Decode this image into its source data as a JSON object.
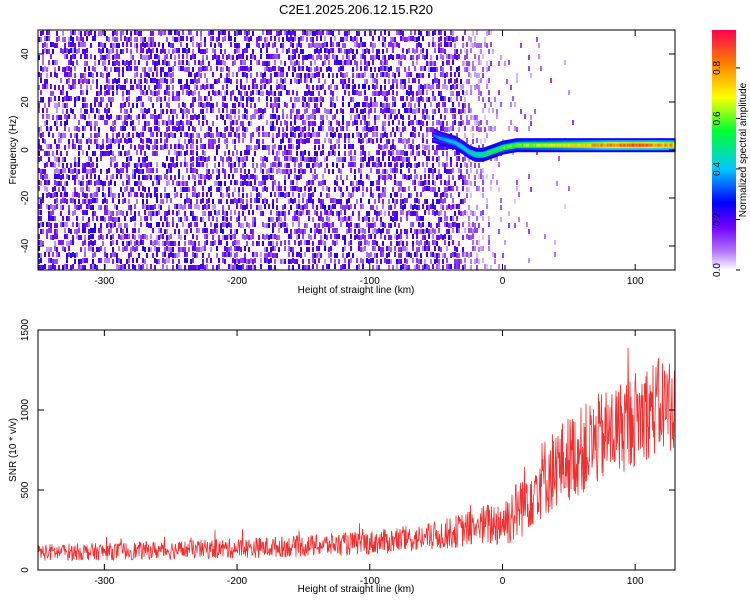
{
  "figure": {
    "title": "C2E1.2025.206.12.15.R20"
  },
  "chart_data": [
    {
      "type": "heatmap",
      "title": "C2E1.2025.206.12.15.R20",
      "xlabel": "Height of straight line (km)",
      "ylabel": "Frequency (Hz)",
      "xlim": [
        -350,
        130
      ],
      "ylim": [
        -50,
        50
      ],
      "xticks": [
        -300,
        -200,
        -100,
        0,
        100
      ],
      "xtick_labels": [
        "-300",
        "-200",
        "-100",
        "0",
        "100"
      ],
      "yticks": [
        -40,
        -20,
        0,
        20,
        40
      ],
      "ytick_labels": [
        "-40",
        "-20",
        "0",
        "20",
        "40"
      ],
      "colorbar": {
        "label": "Normalized spectral amplitude",
        "range": [
          0,
          0.95
        ],
        "ticks": [
          0.0,
          0.2,
          0.4,
          0.6,
          0.8
        ],
        "tick_labels": [
          "0.0",
          "0.2",
          "0.4",
          "0.6",
          "0.8"
        ],
        "colormap": [
          "#ffffff",
          "#8000ff",
          "#0000ff",
          "#00c0ff",
          "#00ff40",
          "#ffff00",
          "#ff8000",
          "#ff0040"
        ]
      },
      "noise_region": {
        "x_range": [
          -350,
          -30
        ],
        "amplitude_range": [
          0.05,
          0.25
        ]
      },
      "fade_region": {
        "x_range": [
          -30,
          0
        ]
      },
      "signal_track": {
        "x": [
          -52,
          -48,
          -42,
          -36,
          -30,
          -25,
          -20,
          -15,
          -10,
          -5,
          0,
          10,
          20,
          40,
          60,
          80,
          100,
          115,
          130
        ],
        "frequency": [
          6,
          5,
          4,
          3,
          1,
          -1,
          -2,
          -2,
          -1,
          0,
          1,
          2,
          2,
          2,
          2,
          2,
          2,
          2,
          2
        ],
        "peak_amplitude": [
          0.35,
          0.4,
          0.45,
          0.45,
          0.5,
          0.5,
          0.55,
          0.55,
          0.6,
          0.6,
          0.65,
          0.65,
          0.7,
          0.75,
          0.8,
          0.9,
          0.95,
          0.9,
          0.85
        ]
      },
      "grid": false
    },
    {
      "type": "line",
      "xlabel": "Height of straight line (km)",
      "ylabel": "SNR (10 * v/v)",
      "xlim": [
        -350,
        130
      ],
      "ylim": [
        0,
        1500
      ],
      "xticks": [
        -300,
        -200,
        -100,
        0,
        100
      ],
      "xtick_labels": [
        "-300",
        "-200",
        "-100",
        "0",
        "100"
      ],
      "yticks": [
        0,
        500,
        1000,
        1500
      ],
      "ytick_labels": [
        "0",
        "500",
        "1000",
        "1500"
      ],
      "color": "#f03030",
      "series": [
        {
          "envelope_x": [
            -350,
            -300,
            -250,
            -200,
            -150,
            -100,
            -60,
            -40,
            -20,
            0,
            10,
            20,
            30,
            50,
            70,
            90,
            110,
            130
          ],
          "envelope_mean": [
            110,
            115,
            125,
            135,
            150,
            170,
            200,
            230,
            270,
            300,
            360,
            480,
            570,
            700,
            800,
            900,
            1000,
            1050
          ],
          "envelope_spread": [
            60,
            60,
            65,
            70,
            75,
            85,
            95,
            110,
            130,
            180,
            220,
            260,
            280,
            300,
            320,
            330,
            340,
            350
          ]
        }
      ],
      "grid": false
    }
  ]
}
